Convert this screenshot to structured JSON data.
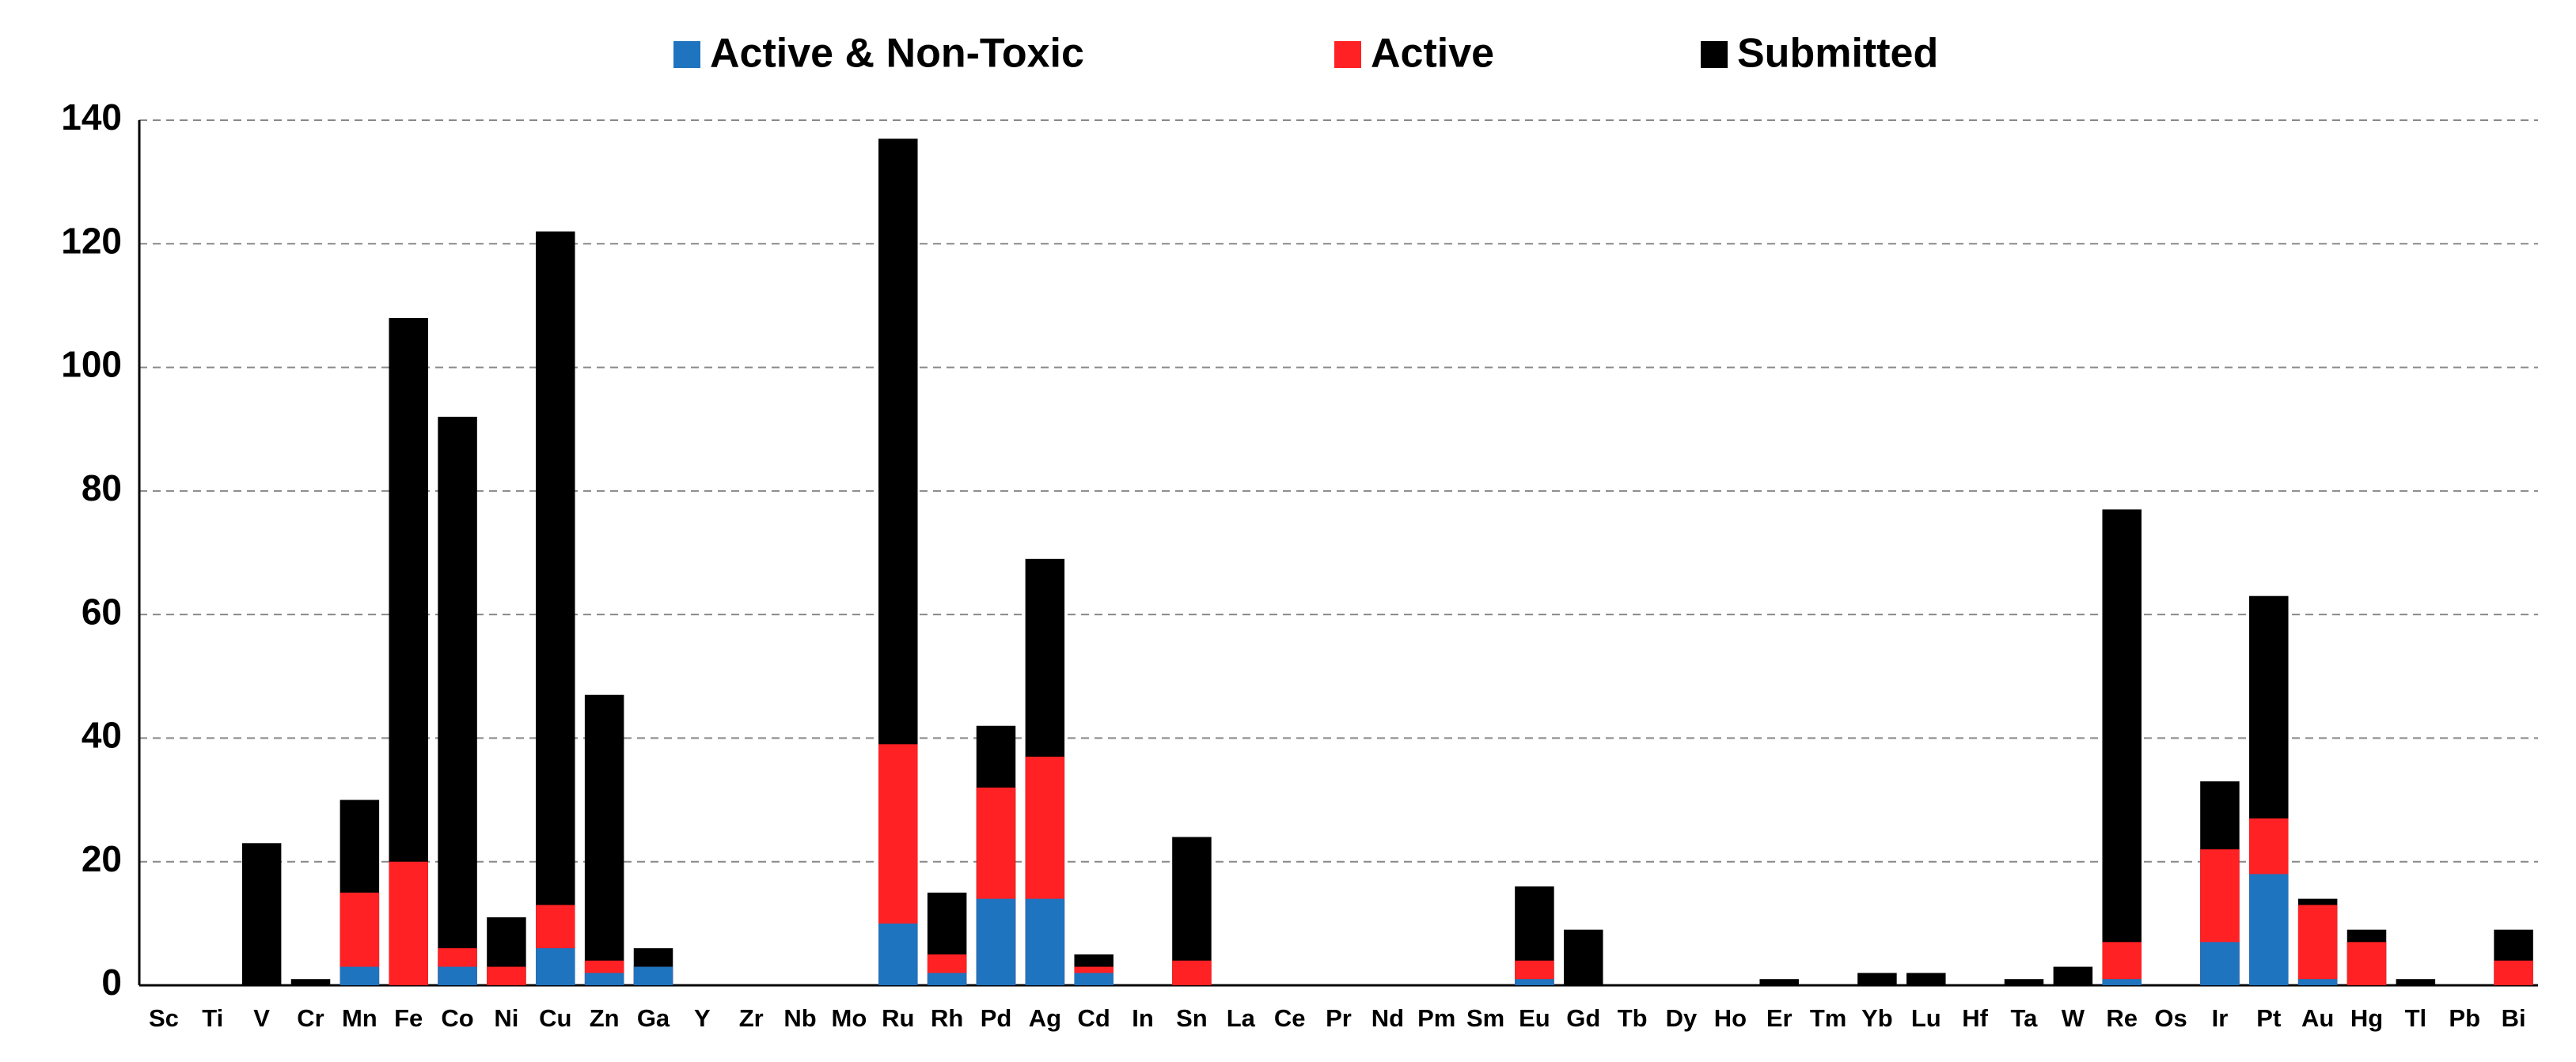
{
  "chart_data": {
    "type": "bar",
    "overlap": true,
    "categories": [
      "Sc",
      "Ti",
      "V",
      "Cr",
      "Mn",
      "Fe",
      "Co",
      "Ni",
      "Cu",
      "Zn",
      "Ga",
      "Y",
      "Zr",
      "Nb",
      "Mo",
      "Ru",
      "Rh",
      "Pd",
      "Ag",
      "Cd",
      "In",
      "Sn",
      "La",
      "Ce",
      "Pr",
      "Nd",
      "Pm",
      "Sm",
      "Eu",
      "Gd",
      "Tb",
      "Dy",
      "Ho",
      "Er",
      "Tm",
      "Yb",
      "Lu",
      "Hf",
      "Ta",
      "W",
      "Re",
      "Os",
      "Ir",
      "Pt",
      "Au",
      "Hg",
      "Tl",
      "Pb",
      "Bi"
    ],
    "series": [
      {
        "name": "Active & Non-Toxic",
        "color": "#1f74c0",
        "values": [
          0,
          0,
          0,
          0,
          3,
          0,
          3,
          0,
          6,
          2,
          3,
          0,
          0,
          0,
          0,
          10,
          2,
          14,
          14,
          2,
          0,
          0,
          0,
          0,
          0,
          0,
          0,
          0,
          1,
          0,
          0,
          0,
          0,
          0,
          0,
          0,
          0,
          0,
          0,
          0,
          1,
          0,
          7,
          18,
          1,
          0,
          0,
          0,
          0
        ]
      },
      {
        "name": "Active",
        "color": "#ff2124",
        "values": [
          0,
          0,
          0,
          0,
          15,
          20,
          6,
          3,
          13,
          4,
          3,
          0,
          0,
          0,
          0,
          39,
          5,
          32,
          37,
          3,
          0,
          4,
          0,
          0,
          0,
          0,
          0,
          0,
          4,
          0,
          0,
          0,
          0,
          0,
          0,
          0,
          0,
          0,
          0,
          0,
          7,
          0,
          22,
          27,
          13,
          7,
          0,
          0,
          4
        ]
      },
      {
        "name": "Submitted",
        "color": "#000000",
        "values": [
          0,
          0,
          23,
          1,
          30,
          108,
          92,
          11,
          122,
          47,
          6,
          0,
          0,
          0,
          0,
          137,
          15,
          42,
          69,
          5,
          0,
          24,
          0,
          0,
          0,
          0,
          0,
          0,
          16,
          9,
          0,
          0,
          0,
          1,
          0,
          2,
          2,
          0,
          1,
          3,
          77,
          0,
          33,
          63,
          14,
          9,
          1,
          0,
          9
        ]
      }
    ],
    "ylim": [
      0,
      140
    ],
    "yticks": [
      0,
      20,
      40,
      60,
      80,
      100,
      120,
      140
    ],
    "grid": true,
    "legend": "top"
  }
}
